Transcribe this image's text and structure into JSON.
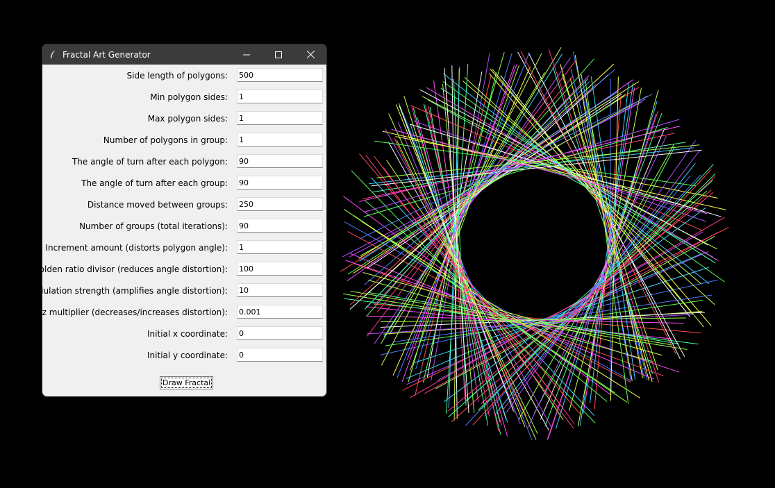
{
  "window": {
    "title": "Fractal Art Generator",
    "icon": "feather-icon"
  },
  "controls": {
    "minimize_icon": "minimize-icon",
    "maximize_icon": "maximize-icon",
    "close_icon": "close-icon"
  },
  "fields": [
    {
      "label": "Side length of polygons:",
      "value": "500"
    },
    {
      "label": "Min polygon sides:",
      "value": "1"
    },
    {
      "label": "Max polygon sides:",
      "value": "1"
    },
    {
      "label": "Number of polygons in group:",
      "value": "1"
    },
    {
      "label": "The angle of turn after each polygon:",
      "value": "90"
    },
    {
      "label": "The angle of turn after each group:",
      "value": "90"
    },
    {
      "label": "Distance moved between groups:",
      "value": "250"
    },
    {
      "label": "Number of groups (total iterations):",
      "value": "90"
    },
    {
      "label": "Increment amount (distorts polygon angle):",
      "value": "1"
    },
    {
      "label": "Golden ratio divisor (reduces angle distortion):",
      "value": "100"
    },
    {
      "label": "Modulation strength (amplifies angle distortion):",
      "value": "10"
    },
    {
      "label": "Lorenz multiplier (decreases/increases distortion):",
      "value": "0.001"
    },
    {
      "label": "Initial x coordinate:",
      "value": "0"
    },
    {
      "label": "Initial y coordinate:",
      "value": "0"
    }
  ],
  "draw_button": {
    "label": "Draw Fractal"
  },
  "canvas": {
    "background": "#000000",
    "line_colors": [
      "#ff3b8d",
      "#5aff5a",
      "#3bd0ff",
      "#ffff4d",
      "#b44dff",
      "#ff4d4d",
      "#4dff9c",
      "#ffffff",
      "#9cff4d",
      "#4d7cff",
      "#ff4dff",
      "#c8ff4d"
    ],
    "line_count": 180
  }
}
